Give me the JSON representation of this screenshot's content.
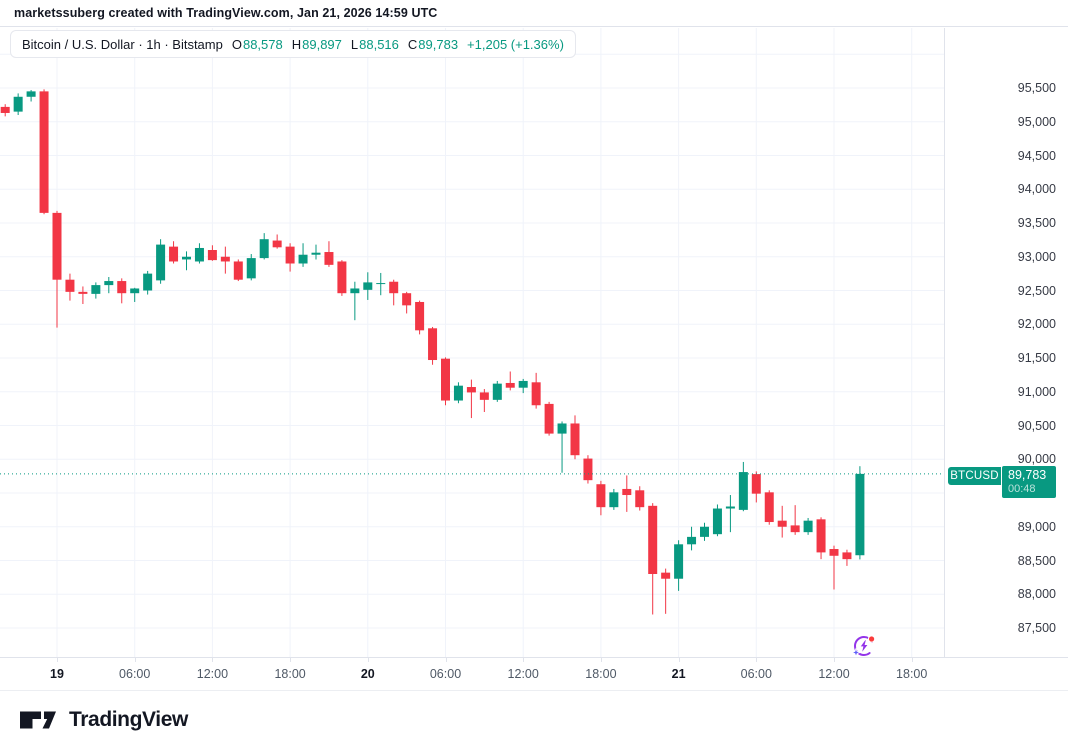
{
  "attribution": {
    "text": "marketssuberg created with TradingView.com, Jan 21, 2026 14:59 UTC"
  },
  "header": {
    "symbol_title": "Bitcoin / U.S. Dollar · 1h · Bitstamp",
    "ohlc": {
      "open_label": "O",
      "open": "88,578",
      "high_label": "H",
      "high": "89,897",
      "low_label": "L",
      "low": "88,516",
      "close_label": "C",
      "close": "89,783",
      "change": "+1,205 (+1.36%)"
    },
    "currency_button": "USD"
  },
  "price_label": {
    "symbol": "BTCUSD",
    "price": "89,783",
    "countdown": "00:48",
    "value": 89783
  },
  "price_axis": {
    "ticks": [
      {
        "text": "95,500",
        "value": 95500
      },
      {
        "text": "95,000",
        "value": 95000
      },
      {
        "text": "94,500",
        "value": 94500
      },
      {
        "text": "94,000",
        "value": 94000
      },
      {
        "text": "93,500",
        "value": 93500
      },
      {
        "text": "93,000",
        "value": 93000
      },
      {
        "text": "92,500",
        "value": 92500
      },
      {
        "text": "92,000",
        "value": 92000
      },
      {
        "text": "91,500",
        "value": 91500
      },
      {
        "text": "91,000",
        "value": 91000
      },
      {
        "text": "90,500",
        "value": 90500
      },
      {
        "text": "90,000",
        "value": 90000
      },
      {
        "text": "89,000",
        "value": 89000
      },
      {
        "text": "88,500",
        "value": 88500
      },
      {
        "text": "88,000",
        "value": 88000
      },
      {
        "text": "87,500",
        "value": 87500
      }
    ]
  },
  "time_axis": {
    "ticks": [
      {
        "label": "19",
        "index": 4,
        "bold": true
      },
      {
        "label": "06:00",
        "index": 10,
        "bold": false
      },
      {
        "label": "12:00",
        "index": 16,
        "bold": false
      },
      {
        "label": "18:00",
        "index": 22,
        "bold": false
      },
      {
        "label": "20",
        "index": 28,
        "bold": true
      },
      {
        "label": "06:00",
        "index": 34,
        "bold": false
      },
      {
        "label": "12:00",
        "index": 40,
        "bold": false
      },
      {
        "label": "18:00",
        "index": 46,
        "bold": false
      },
      {
        "label": "21",
        "index": 52,
        "bold": true
      },
      {
        "label": "06:00",
        "index": 58,
        "bold": false
      },
      {
        "label": "12:00",
        "index": 64,
        "bold": false
      },
      {
        "label": "18:00",
        "index": 70,
        "bold": false
      }
    ]
  },
  "footer": {
    "brand": "TradingView"
  },
  "colors": {
    "up": "#089981",
    "down": "#f23645",
    "grid": "#f0f3fa",
    "axis_border": "#e0e3eb",
    "last_price_line": "#089981"
  },
  "chart_data": {
    "type": "candlestick",
    "title": "Bitcoin / U.S. Dollar",
    "symbol": "BTCUSD",
    "exchange": "Bitstamp",
    "interval": "1h",
    "last_price": 89783,
    "y_range": [
      87100,
      96000
    ],
    "grid_step": 500,
    "grid": true,
    "columns": [
      "time",
      "open",
      "high",
      "low",
      "close"
    ],
    "candles": [
      [
        "Jan 18 20:00",
        95220,
        95260,
        95080,
        95130
      ],
      [
        "Jan 18 21:00",
        95150,
        95420,
        95100,
        95370
      ],
      [
        "Jan 18 22:00",
        95370,
        95470,
        95300,
        95450
      ],
      [
        "Jan 18 23:00",
        95450,
        95480,
        93630,
        93650
      ],
      [
        "Jan 19 00:00",
        93650,
        93680,
        91950,
        92660
      ],
      [
        "Jan 19 01:00",
        92660,
        92750,
        92350,
        92480
      ],
      [
        "Jan 19 02:00",
        92480,
        92560,
        92300,
        92450
      ],
      [
        "Jan 19 03:00",
        92450,
        92620,
        92380,
        92580
      ],
      [
        "Jan 19 04:00",
        92580,
        92700,
        92460,
        92640
      ],
      [
        "Jan 19 05:00",
        92640,
        92680,
        92310,
        92460
      ],
      [
        "Jan 19 06:00",
        92460,
        92540,
        92330,
        92530
      ],
      [
        "Jan 19 07:00",
        92500,
        92790,
        92440,
        92750
      ],
      [
        "Jan 19 08:00",
        92650,
        93260,
        92600,
        93180
      ],
      [
        "Jan 19 09:00",
        93150,
        93230,
        92900,
        92930
      ],
      [
        "Jan 19 10:00",
        92960,
        93080,
        92800,
        93000
      ],
      [
        "Jan 19 11:00",
        92930,
        93200,
        92900,
        93130
      ],
      [
        "Jan 19 12:00",
        93100,
        93170,
        92940,
        92950
      ],
      [
        "Jan 19 13:00",
        93000,
        93150,
        92750,
        92930
      ],
      [
        "Jan 19 14:00",
        92930,
        92960,
        92640,
        92660
      ],
      [
        "Jan 19 15:00",
        92680,
        93040,
        92650,
        92980
      ],
      [
        "Jan 19 16:00",
        92980,
        93350,
        92960,
        93260
      ],
      [
        "Jan 19 17:00",
        93240,
        93330,
        93120,
        93140
      ],
      [
        "Jan 19 18:00",
        93150,
        93200,
        92780,
        92900
      ],
      [
        "Jan 19 19:00",
        92900,
        93200,
        92850,
        93030
      ],
      [
        "Jan 19 20:00",
        93030,
        93180,
        92960,
        93060
      ],
      [
        "Jan 19 21:00",
        93070,
        93230,
        92850,
        92880
      ],
      [
        "Jan 19 22:00",
        92930,
        92950,
        92420,
        92460
      ],
      [
        "Jan 19 23:00",
        92460,
        92630,
        92060,
        92530
      ],
      [
        "Jan 20 00:00",
        92510,
        92770,
        92360,
        92620
      ],
      [
        "Jan 20 01:00",
        92600,
        92760,
        92430,
        92610
      ],
      [
        "Jan 20 02:00",
        92630,
        92660,
        92280,
        92460
      ],
      [
        "Jan 20 03:00",
        92460,
        92480,
        92160,
        92280
      ],
      [
        "Jan 20 04:00",
        92330,
        92350,
        91850,
        91910
      ],
      [
        "Jan 20 05:00",
        91940,
        91960,
        91400,
        91470
      ],
      [
        "Jan 20 06:00",
        91490,
        91510,
        90800,
        90870
      ],
      [
        "Jan 20 07:00",
        90870,
        91140,
        90830,
        91090
      ],
      [
        "Jan 20 08:00",
        91070,
        91180,
        90610,
        90990
      ],
      [
        "Jan 20 09:00",
        90990,
        91040,
        90700,
        90880
      ],
      [
        "Jan 20 10:00",
        90880,
        91160,
        90850,
        91120
      ],
      [
        "Jan 20 11:00",
        91130,
        91300,
        91020,
        91060
      ],
      [
        "Jan 20 12:00",
        91060,
        91190,
        90980,
        91160
      ],
      [
        "Jan 20 13:00",
        91140,
        91280,
        90750,
        90800
      ],
      [
        "Jan 20 14:00",
        90820,
        90850,
        90350,
        90380
      ],
      [
        "Jan 20 15:00",
        90380,
        90560,
        89800,
        90530
      ],
      [
        "Jan 20 16:00",
        90530,
        90650,
        90000,
        90060
      ],
      [
        "Jan 20 17:00",
        90010,
        90060,
        89640,
        89690
      ],
      [
        "Jan 20 18:00",
        89630,
        89680,
        89170,
        89290
      ],
      [
        "Jan 20 19:00",
        89290,
        89560,
        89250,
        89510
      ],
      [
        "Jan 20 20:00",
        89560,
        89760,
        89220,
        89470
      ],
      [
        "Jan 20 21:00",
        89540,
        89600,
        89240,
        89290
      ],
      [
        "Jan 20 22:00",
        89310,
        89350,
        87700,
        88300
      ],
      [
        "Jan 20 23:00",
        88320,
        88380,
        87710,
        88230
      ],
      [
        "Jan 21 00:00",
        88230,
        88800,
        88050,
        88740
      ],
      [
        "Jan 21 01:00",
        88740,
        89000,
        88650,
        88850
      ],
      [
        "Jan 21 02:00",
        88850,
        89060,
        88790,
        89000
      ],
      [
        "Jan 21 03:00",
        88890,
        89330,
        88860,
        89270
      ],
      [
        "Jan 21 04:00",
        89270,
        89470,
        88920,
        89300
      ],
      [
        "Jan 21 05:00",
        89250,
        89960,
        89230,
        89810
      ],
      [
        "Jan 21 06:00",
        89780,
        89820,
        89360,
        89490
      ],
      [
        "Jan 21 07:00",
        89510,
        89540,
        89030,
        89070
      ],
      [
        "Jan 21 08:00",
        89090,
        89310,
        88840,
        89000
      ],
      [
        "Jan 21 09:00",
        89020,
        89320,
        88880,
        88920
      ],
      [
        "Jan 21 10:00",
        88920,
        89130,
        88880,
        89090
      ],
      [
        "Jan 21 11:00",
        89110,
        89140,
        88520,
        88620
      ],
      [
        "Jan 21 12:00",
        88670,
        88720,
        88070,
        88570
      ],
      [
        "Jan 21 13:00",
        88620,
        88660,
        88420,
        88520
      ],
      [
        "Jan 21 14:00",
        88578,
        89897,
        88516,
        89783
      ]
    ]
  }
}
